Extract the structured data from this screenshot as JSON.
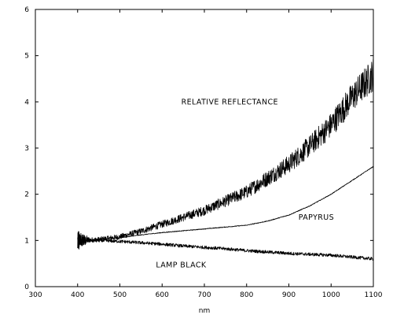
{
  "chart_data": {
    "type": "line",
    "title": "",
    "xlabel": "nm",
    "ylabel": "",
    "xlim": [
      300,
      1100
    ],
    "ylim": [
      0,
      6
    ],
    "grid": false,
    "x_ticks": [
      300,
      400,
      500,
      600,
      700,
      800,
      900,
      1000,
      1100
    ],
    "y_ticks": [
      0,
      1,
      2,
      3,
      4,
      5,
      6
    ],
    "series": [
      {
        "x": [
          400,
          450,
          500,
          550,
          600,
          650,
          700,
          750,
          800,
          850,
          900,
          950,
          1000,
          1050,
          1100
        ],
        "values": [
          1.0,
          1.02,
          1.08,
          1.2,
          1.35,
          1.5,
          1.65,
          1.85,
          2.05,
          2.35,
          2.65,
          3.05,
          3.5,
          4.1,
          4.6
        ],
        "noise": "high"
      },
      {
        "x": [
          400,
          450,
          500,
          550,
          600,
          650,
          700,
          750,
          800,
          850,
          900,
          950,
          1000,
          1050,
          1100
        ],
        "values": [
          0.98,
          1.02,
          1.06,
          1.12,
          1.17,
          1.21,
          1.25,
          1.29,
          1.33,
          1.42,
          1.55,
          1.75,
          2.0,
          2.3,
          2.6
        ],
        "noise": "low"
      },
      {
        "x": [
          400,
          450,
          500,
          550,
          600,
          650,
          700,
          750,
          800,
          850,
          900,
          950,
          1000,
          1050,
          1100
        ],
        "values": [
          1.0,
          1.0,
          0.98,
          0.95,
          0.92,
          0.88,
          0.85,
          0.82,
          0.78,
          0.75,
          0.72,
          0.7,
          0.68,
          0.64,
          0.6
        ],
        "noise": "medium"
      }
    ],
    "annotations": [
      {
        "text": "RELATIVE REFLECTANCE",
        "x": 760,
        "y": 3.95
      },
      {
        "text": "PAPYRUS",
        "x": 965,
        "y": 1.45
      },
      {
        "text": "LAMP BLACK",
        "x": 645,
        "y": 0.42
      }
    ]
  }
}
